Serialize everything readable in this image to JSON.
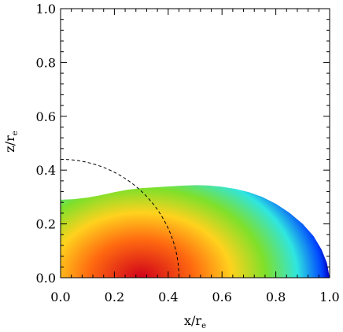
{
  "chart_data": {
    "type": "heatmap",
    "title": "",
    "xlabel": {
      "main": "x/r",
      "sub": "e"
    },
    "ylabel": {
      "main": "z/r",
      "sub": "e"
    },
    "xlim": [
      0.0,
      1.0
    ],
    "ylim": [
      0.0,
      1.0
    ],
    "x_ticks": [
      0.0,
      0.2,
      0.4,
      0.6,
      0.8,
      1.0
    ],
    "y_ticks": [
      0.0,
      0.2,
      0.4,
      0.6,
      0.8,
      1.0
    ],
    "x_tick_labels": [
      "0.0",
      "0.2",
      "0.4",
      "0.6",
      "0.8",
      "1.0"
    ],
    "y_tick_labels": [
      "0.0",
      "0.2",
      "0.4",
      "0.6",
      "0.8",
      "1.0"
    ],
    "minor_ticks_per_major": 4,
    "grid": false,
    "legend": "none",
    "colormap": [
      "#d0001a",
      "#ff6a10",
      "#ffd21e",
      "#7fe02a",
      "#2fe6e0",
      "#0045ff",
      "#0000c0"
    ],
    "surface_boundary": [
      [
        0.0,
        0.29
      ],
      [
        0.05,
        0.292
      ],
      [
        0.1,
        0.298
      ],
      [
        0.15,
        0.307
      ],
      [
        0.2,
        0.318
      ],
      [
        0.25,
        0.327
      ],
      [
        0.3,
        0.333
      ],
      [
        0.35,
        0.336
      ],
      [
        0.4,
        0.339
      ],
      [
        0.45,
        0.342
      ],
      [
        0.5,
        0.344
      ],
      [
        0.55,
        0.343
      ],
      [
        0.6,
        0.338
      ],
      [
        0.65,
        0.33
      ],
      [
        0.7,
        0.318
      ],
      [
        0.75,
        0.3
      ],
      [
        0.8,
        0.275
      ],
      [
        0.85,
        0.242
      ],
      [
        0.9,
        0.2
      ],
      [
        0.94,
        0.155
      ],
      [
        0.97,
        0.105
      ],
      [
        0.99,
        0.055
      ],
      [
        1.0,
        0.0
      ]
    ],
    "density_peak": [
      0.3,
      0.0
    ],
    "dashed_circle_radius": 0.44,
    "dashed_circle_color": "#000000"
  }
}
